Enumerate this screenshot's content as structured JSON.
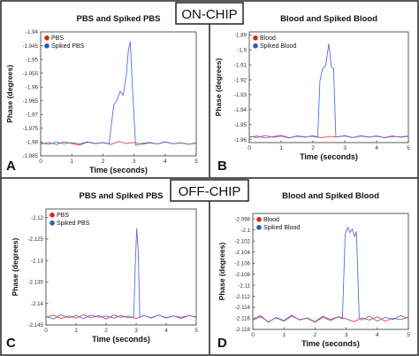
{
  "sections": [
    {
      "label": "ON-CHIP"
    },
    {
      "label": "OFF-CHIP"
    }
  ],
  "chart_data": [
    {
      "panel": "A",
      "type": "line",
      "title": "PBS and Spiked PBS",
      "xlabel": "Time (seconds)",
      "ylabel": "Phase (degrees)",
      "xlim": [
        0,
        5
      ],
      "ylim": [
        -1.985,
        -1.94
      ],
      "xticks": [
        0,
        1,
        2,
        3,
        4,
        5
      ],
      "yticks": [
        -1.94,
        -1.945,
        -1.95,
        -1.955,
        -1.96,
        -1.965,
        -1.97,
        -1.975,
        -1.98,
        -1.985
      ],
      "ytick_labels": [
        "-1.94",
        "-1.945",
        "-1.95",
        "-1.955",
        "-1.96",
        "-1.965",
        "-1.97",
        "-1.975",
        "-1.98",
        "-1.985"
      ],
      "legend": {
        "position": "top-left",
        "entries": [
          {
            "name": "PBS",
            "color": "#e02020"
          },
          {
            "name": "Spiked PBS",
            "color": "#3355cc"
          }
        ]
      },
      "series": [
        {
          "name": "PBS",
          "color": "#e8483f",
          "x": [
            0,
            0.25,
            0.5,
            0.75,
            1,
            1.25,
            1.5,
            1.75,
            2,
            2.25,
            2.5,
            2.75,
            3,
            3.25,
            3.5,
            3.75,
            4,
            4.25,
            4.5,
            4.75,
            5
          ],
          "y": [
            -1.9808,
            -1.9801,
            -1.9809,
            -1.9799,
            -1.9805,
            -1.9811,
            -1.98,
            -1.9806,
            -1.9802,
            -1.9809,
            -1.9798,
            -1.9805,
            -1.9801,
            -1.9808,
            -1.9803,
            -1.9807,
            -1.9799,
            -1.9806,
            -1.9802,
            -1.9808,
            -1.9804
          ]
        },
        {
          "name": "Spiked PBS",
          "color": "#5a6fd6",
          "x": [
            0,
            0.25,
            0.5,
            0.75,
            1,
            1.25,
            1.5,
            1.75,
            2,
            2.2,
            2.35,
            2.45,
            2.55,
            2.65,
            2.75,
            2.82,
            2.88,
            2.95,
            3.05,
            3.25,
            3.5,
            3.75,
            4,
            4.25,
            4.5,
            4.75,
            5
          ],
          "y": [
            -1.9803,
            -1.9808,
            -1.98,
            -1.9806,
            -1.9802,
            -1.9807,
            -1.9799,
            -1.9805,
            -1.9801,
            -1.9806,
            -1.9665,
            -1.965,
            -1.9615,
            -1.963,
            -1.956,
            -1.9465,
            -1.9435,
            -1.96,
            -1.9812,
            -1.9805,
            -1.9801,
            -1.9807,
            -1.98,
            -1.9806,
            -1.9803,
            -1.9808,
            -1.9802
          ]
        }
      ]
    },
    {
      "panel": "B",
      "type": "line",
      "title": "Blood and Spiked Blood",
      "xlabel": "Time (seconds)",
      "ylabel": "Phase (degrees)",
      "xlim": [
        0,
        5
      ],
      "ylim": [
        -1.962,
        -1.888
      ],
      "xticks": [
        0,
        1,
        2,
        3,
        4,
        5
      ],
      "yticks": [
        -1.89,
        -1.9,
        -1.91,
        -1.92,
        -1.93,
        -1.94,
        -1.95,
        -1.96
      ],
      "ytick_labels": [
        "-1.89",
        "-1.9",
        "-1.91",
        "-1.92",
        "-1.93",
        "-1.94",
        "-1.95",
        "-1.96"
      ],
      "legend": {
        "position": "top-left",
        "entries": [
          {
            "name": "Blood",
            "color": "#e02020"
          },
          {
            "name": "Spiked Blood",
            "color": "#3355cc"
          }
        ]
      },
      "series": [
        {
          "name": "Blood",
          "color": "#e8483f",
          "x": [
            0,
            0.25,
            0.5,
            0.75,
            1,
            1.25,
            1.5,
            1.75,
            2,
            2.25,
            2.5,
            2.75,
            3,
            3.25,
            3.5,
            3.75,
            4,
            4.25,
            4.5,
            4.75,
            5
          ],
          "y": [
            -1.9585,
            -1.9576,
            -1.9589,
            -1.958,
            -1.9572,
            -1.9587,
            -1.9578,
            -1.9584,
            -1.9574,
            -1.9588,
            -1.9579,
            -1.9583,
            -1.9573,
            -1.9586,
            -1.9577,
            -1.9584,
            -1.9575,
            -1.9588,
            -1.958,
            -1.9582,
            -1.9576
          ]
        },
        {
          "name": "Spiked Blood",
          "color": "#5a6fd6",
          "x": [
            0,
            0.25,
            0.5,
            0.75,
            1,
            1.25,
            1.5,
            1.75,
            2,
            2.15,
            2.22,
            2.3,
            2.4,
            2.5,
            2.58,
            2.65,
            2.72,
            3.0,
            3.25,
            3.5,
            3.75,
            4,
            4.25,
            4.5,
            4.75,
            5
          ],
          "y": [
            -1.958,
            -1.9586,
            -1.9573,
            -1.9584,
            -1.9577,
            -1.9589,
            -1.9575,
            -1.9582,
            -1.9578,
            -1.9585,
            -1.921,
            -1.913,
            -1.9105,
            -1.896,
            -1.9115,
            -1.9125,
            -1.9582,
            -1.9576,
            -1.9587,
            -1.9574,
            -1.9583,
            -1.9578,
            -1.9586,
            -1.9575,
            -1.9584,
            -1.9579
          ]
        }
      ]
    },
    {
      "panel": "C",
      "type": "line",
      "title": "PBS and Spiked PBS",
      "xlabel": "Time (seconds)",
      "ylabel": "Phase (degrees)",
      "xlim": [
        0,
        5
      ],
      "ylim": [
        -2.145,
        -2.118
      ],
      "xticks": [
        0,
        1,
        2,
        3,
        4,
        5
      ],
      "yticks": [
        -2.12,
        -2.125,
        -2.13,
        -2.135,
        -2.14,
        -2.145
      ],
      "ytick_labels": [
        "-2.12",
        "-2.125",
        "-2.13",
        "-2.135",
        "-2.14",
        "-2.145"
      ],
      "legend": {
        "position": "top-left",
        "entries": [
          {
            "name": "PBS",
            "color": "#e02020"
          },
          {
            "name": "Spiked PBS",
            "color": "#3355cc"
          }
        ]
      },
      "series": [
        {
          "name": "PBS",
          "color": "#e8483f",
          "x": [
            0,
            0.25,
            0.5,
            0.75,
            1,
            1.25,
            1.5,
            1.75,
            2,
            2.25,
            2.5,
            2.75,
            3,
            3.25,
            3.5,
            3.75,
            4,
            4.25,
            4.5,
            4.75,
            5
          ],
          "y": [
            -2.1432,
            -2.1427,
            -2.1435,
            -2.1429,
            -2.1434,
            -2.1426,
            -2.1433,
            -2.1428,
            -2.1436,
            -2.1427,
            -2.1432,
            -2.1429,
            -2.1435,
            -2.1428,
            -2.1433,
            -2.1427,
            -2.1434,
            -2.1429,
            -2.1432,
            -2.1428,
            -2.1431
          ]
        },
        {
          "name": "Spiked PBS",
          "color": "#5a6fd6",
          "x": [
            0,
            0.25,
            0.5,
            0.75,
            1,
            1.25,
            1.5,
            1.75,
            2,
            2.25,
            2.5,
            2.75,
            2.92,
            2.97,
            3.02,
            3.07,
            3.12,
            3.25,
            3.5,
            3.75,
            4,
            4.25,
            4.5,
            4.75,
            5
          ],
          "y": [
            -2.143,
            -2.1436,
            -2.1426,
            -2.1433,
            -2.1428,
            -2.1435,
            -2.1427,
            -2.1432,
            -2.1429,
            -2.1434,
            -2.1428,
            -2.1433,
            -2.1431,
            -2.131,
            -2.1225,
            -2.128,
            -2.1432,
            -2.1428,
            -2.1434,
            -2.1427,
            -2.1433,
            -2.1429,
            -2.1435,
            -2.1428,
            -2.1432
          ]
        }
      ]
    },
    {
      "panel": "D",
      "type": "line",
      "title": "Blood and Spiked Blood",
      "xlabel": "Time (seconds)",
      "ylabel": "Phase (degrees)",
      "xlim": [
        0,
        5
      ],
      "ylim": [
        -2.118,
        -2.097
      ],
      "xticks": [
        0,
        1,
        2,
        3,
        4,
        5
      ],
      "yticks": [
        -2.098,
        -2.1,
        -2.102,
        -2.104,
        -2.106,
        -2.108,
        -2.11,
        -2.112,
        -2.114,
        -2.116,
        -2.118
      ],
      "ytick_labels": [
        "-2.098",
        "-2.1",
        "-2.102",
        "-2.104",
        "-2.106",
        "-2.108",
        "-2.11",
        "-2.112",
        "-2.114",
        "-2.116",
        "-2.118"
      ],
      "legend": {
        "position": "top-left",
        "entries": [
          {
            "name": "Blood",
            "color": "#e02020"
          },
          {
            "name": "Spiked Blood",
            "color": "#3355cc"
          }
        ]
      },
      "series": [
        {
          "name": "Blood",
          "color": "#e8483f",
          "x": [
            0,
            0.25,
            0.5,
            0.75,
            1,
            1.25,
            1.5,
            1.75,
            2,
            2.25,
            2.5,
            2.75,
            3,
            3.25,
            3.5,
            3.75,
            4,
            4.25,
            4.5,
            4.75,
            5
          ],
          "y": [
            -2.1163,
            -2.1157,
            -2.1166,
            -2.1159,
            -2.1165,
            -2.1156,
            -2.1162,
            -2.116,
            -2.1167,
            -2.1158,
            -2.1164,
            -2.1157,
            -2.1161,
            -2.1166,
            -2.1159,
            -2.1163,
            -2.1157,
            -2.1165,
            -2.116,
            -2.1162,
            -2.1158
          ]
        },
        {
          "name": "Spiked Blood",
          "color": "#5a6fd6",
          "x": [
            0,
            0.25,
            0.5,
            0.75,
            1,
            1.25,
            1.5,
            1.75,
            2,
            2.25,
            2.5,
            2.75,
            2.88,
            2.97,
            3.05,
            3.12,
            3.2,
            3.27,
            3.33,
            3.42,
            3.5,
            3.75,
            4,
            4.25,
            4.5,
            4.75,
            5
          ],
          "y": [
            -2.1161,
            -2.1155,
            -2.1167,
            -2.1158,
            -2.1164,
            -2.1154,
            -2.1163,
            -2.1159,
            -2.1166,
            -2.1156,
            -2.1162,
            -2.1157,
            -2.1161,
            -2.1008,
            -2.0995,
            -2.1005,
            -2.0998,
            -2.1012,
            -2.1003,
            -2.1159,
            -2.1163,
            -2.1156,
            -2.1165,
            -2.1158,
            -2.1162,
            -2.1155,
            -2.116
          ]
        }
      ]
    }
  ]
}
